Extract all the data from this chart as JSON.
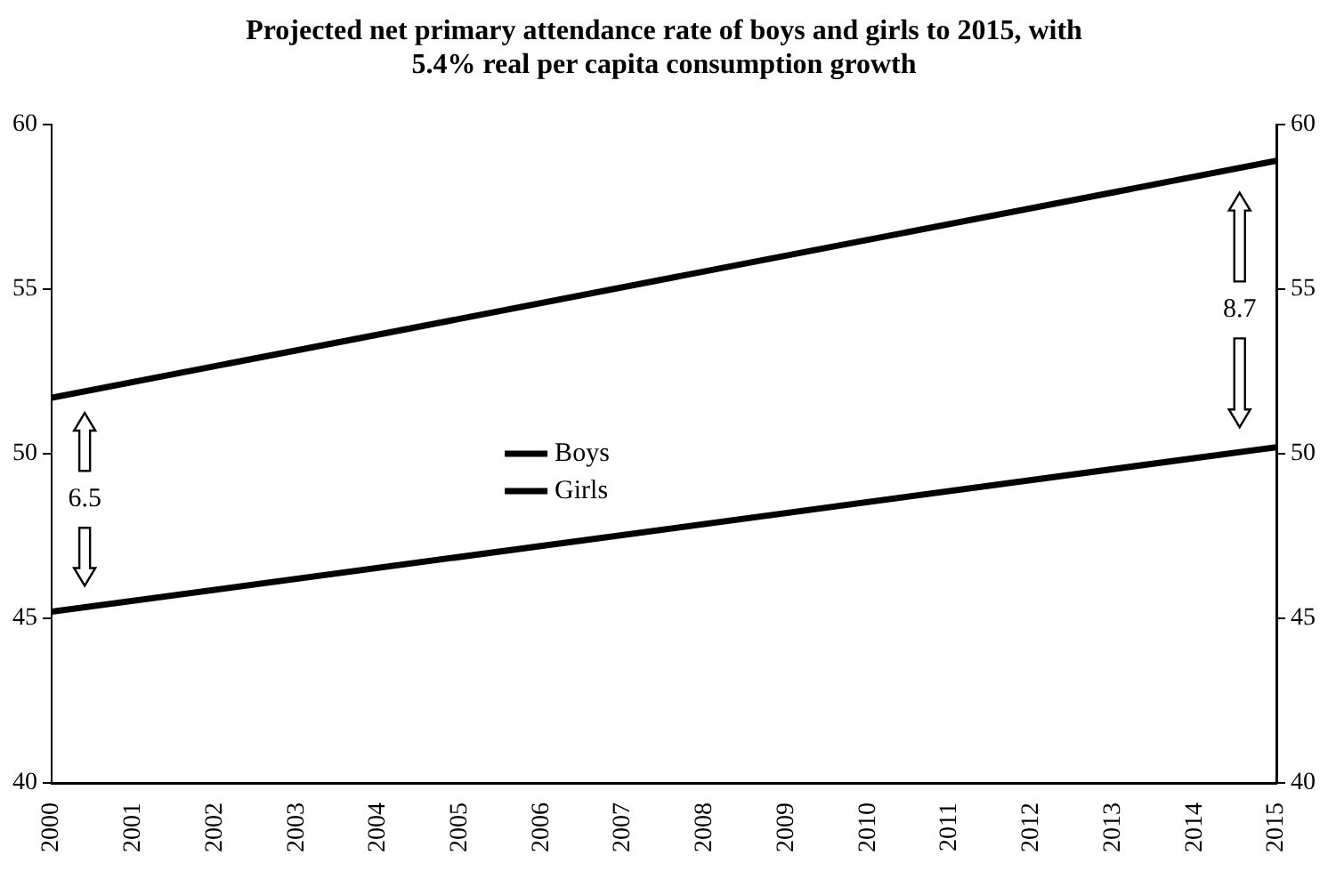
{
  "chart_data": {
    "type": "line",
    "title": "Projected net primary attendance rate of boys and girls to 2015, with\n5.4% real per capita consumption growth",
    "x": [
      2000,
      2015
    ],
    "series": [
      {
        "name": "Boys",
        "color": "#000000",
        "values": [
          51.7,
          58.9
        ]
      },
      {
        "name": "Girls",
        "color": "#000000",
        "values": [
          45.2,
          50.2
        ]
      }
    ],
    "xlim": [
      2000,
      2015
    ],
    "xticks": [
      2000,
      2001,
      2002,
      2003,
      2004,
      2005,
      2006,
      2007,
      2008,
      2009,
      2010,
      2011,
      2012,
      2013,
      2014,
      2015
    ],
    "ylim": [
      40,
      60
    ],
    "yticks": [
      40,
      45,
      50,
      55,
      60
    ],
    "y2lim": [
      40,
      60
    ],
    "y2ticks": [
      40,
      45,
      50,
      55,
      60
    ],
    "annotations": [
      "6.5",
      "8.7"
    ],
    "legend": "center",
    "grid": false,
    "marker": "none",
    "line_style": "solid"
  }
}
